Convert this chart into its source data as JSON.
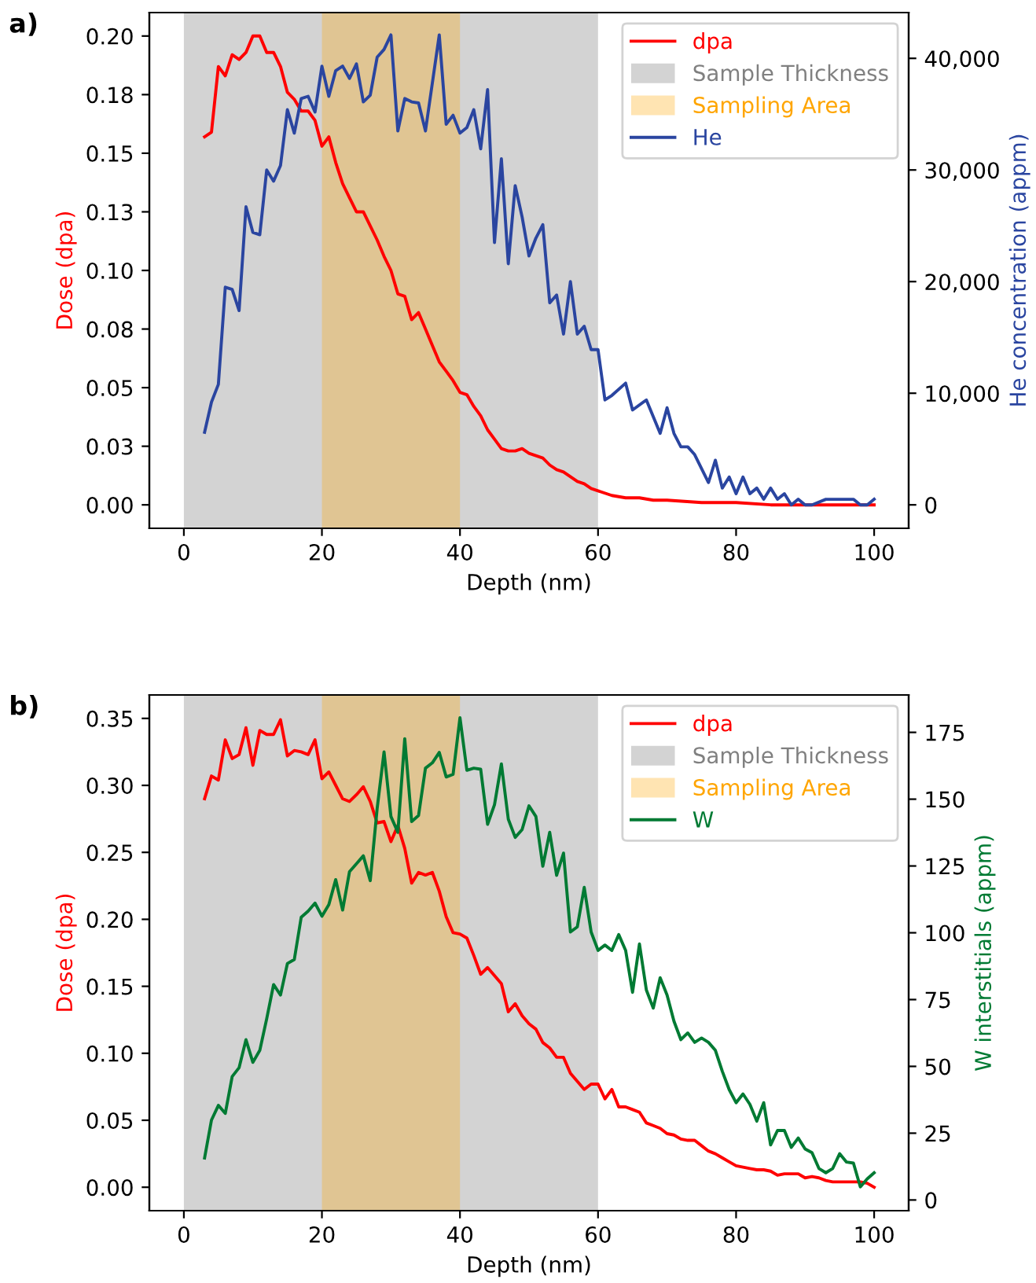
{
  "chart_data": [
    {
      "type": "line",
      "annotations": [
        "a)"
      ],
      "xlabel": "Depth (nm)",
      "ylabel": "Dose (dpa)",
      "y2label": "He concentration (appm)",
      "legend": "top right",
      "xlim": [
        -5,
        105
      ],
      "xticks": [
        0,
        20,
        40,
        60,
        80,
        100
      ],
      "ylim": [
        -0.01,
        0.21
      ],
      "yticks": [
        {
          "value": 0,
          "label": "0.00"
        },
        {
          "value": 0.025,
          "label": "0.03"
        },
        {
          "value": 0.05,
          "label": "0.05"
        },
        {
          "value": 0.075,
          "label": "0.08"
        },
        {
          "value": 0.1,
          "label": "0.10"
        },
        {
          "value": 0.125,
          "label": "0.13"
        },
        {
          "value": 0.15,
          "label": "0.15"
        },
        {
          "value": 0.175,
          "label": "0.18"
        },
        {
          "value": 0.2,
          "label": "0.20"
        }
      ],
      "y2lim": [
        -2100,
        44100
      ],
      "y2ticks": [
        0,
        {
          "value": 10000,
          "label": "10,000"
        },
        {
          "value": 20000,
          "label": "20,000"
        },
        {
          "value": 30000,
          "label": "30,000"
        },
        {
          "value": 40000,
          "label": "40,000"
        }
      ],
      "bands": [
        {
          "axis": "x",
          "from": 0,
          "to": 60,
          "label": "Sample Thickness",
          "color": "#808080"
        },
        {
          "axis": "x",
          "from": 20,
          "to": 40,
          "label": "Sampling Area",
          "color": "#ffa500"
        }
      ],
      "series": [
        {
          "name": "dpa",
          "color": "#ff0000",
          "x": [
            3,
            4,
            5,
            6,
            7,
            8,
            9,
            10,
            11,
            12,
            13,
            14,
            15,
            16,
            17,
            18,
            19,
            20,
            21,
            22,
            23,
            24,
            25,
            26,
            27,
            28,
            29,
            30,
            31,
            32,
            33,
            34,
            35,
            36,
            37,
            38,
            39,
            40,
            41,
            42,
            43,
            44,
            45,
            46,
            47,
            48,
            49,
            50,
            52,
            53,
            54,
            55,
            56,
            57,
            58,
            59,
            60,
            62,
            64,
            66,
            68,
            70,
            75,
            80,
            85,
            90,
            95,
            100
          ],
          "values": [
            0.157,
            0.159,
            0.187,
            0.183,
            0.192,
            0.19,
            0.193,
            0.2,
            0.2,
            0.193,
            0.193,
            0.187,
            0.176,
            0.173,
            0.168,
            0.168,
            0.164,
            0.153,
            0.157,
            0.146,
            0.137,
            0.131,
            0.125,
            0.125,
            0.119,
            0.113,
            0.106,
            0.1,
            0.09,
            0.089,
            0.079,
            0.082,
            0.075,
            0.068,
            0.061,
            0.057,
            0.053,
            0.048,
            0.047,
            0.042,
            0.038,
            0.032,
            0.028,
            0.024,
            0.023,
            0.023,
            0.024,
            0.022,
            0.02,
            0.017,
            0.015,
            0.014,
            0.012,
            0.01,
            0.009,
            0.007,
            0.006,
            0.004,
            0.003,
            0.003,
            0.002,
            0.002,
            0.001,
            0.001,
            0,
            0,
            0,
            0
          ]
        },
        {
          "name": "He",
          "color": "#2a45a0",
          "axis": "y2",
          "x": [
            3,
            4,
            5,
            6,
            7,
            8,
            9,
            10,
            11,
            12,
            13,
            14,
            15,
            16,
            17,
            18,
            19,
            20,
            21,
            22,
            23,
            24,
            25,
            26,
            27,
            28,
            29,
            30,
            31,
            32,
            33,
            34,
            35,
            36,
            37,
            38,
            39,
            40,
            41,
            42,
            43,
            44,
            45,
            46,
            47,
            48,
            49,
            50,
            51,
            52,
            53,
            54,
            55,
            56,
            57,
            58,
            59,
            60,
            61,
            62,
            64,
            65,
            67,
            69,
            70,
            71,
            72,
            73,
            74,
            76,
            77,
            78,
            79,
            80,
            81,
            82,
            83,
            84,
            85,
            86,
            87,
            88,
            89,
            90,
            91,
            93,
            95,
            97,
            98,
            99,
            100
          ],
          "values": [
            6500,
            9200,
            10800,
            19500,
            19300,
            17400,
            26700,
            24400,
            24200,
            30000,
            29000,
            30400,
            35400,
            33300,
            36400,
            36600,
            35200,
            39300,
            36600,
            38900,
            39300,
            38200,
            39500,
            36100,
            36700,
            40100,
            40800,
            42100,
            33500,
            36400,
            36100,
            36000,
            33500,
            37800,
            42100,
            34100,
            34900,
            33300,
            33800,
            35400,
            31900,
            37200,
            23500,
            31000,
            21600,
            28600,
            25800,
            22300,
            23900,
            25100,
            18100,
            18800,
            15300,
            20000,
            15300,
            16000,
            13900,
            13900,
            9400,
            9800,
            10900,
            8500,
            9400,
            6400,
            8700,
            6400,
            5200,
            5200,
            4500,
            2000,
            4000,
            1500,
            2500,
            1000,
            2500,
            1000,
            1500,
            500,
            1500,
            500,
            1000,
            0,
            500,
            0,
            0,
            500,
            500,
            500,
            0,
            0,
            500
          ]
        }
      ]
    },
    {
      "type": "line",
      "annotations": [
        "b)"
      ],
      "xlabel": "Depth (nm)",
      "ylabel": "Dose (dpa)",
      "y2label": "W interstitials (appm)",
      "legend": "top right",
      "xlim": [
        -5,
        105
      ],
      "xticks": [
        0,
        20,
        40,
        60,
        80,
        100
      ],
      "ylim": [
        -0.0175,
        0.3675
      ],
      "yticks": [
        {
          "value": 0,
          "label": "0.00"
        },
        {
          "value": 0.05,
          "label": "0.05"
        },
        {
          "value": 0.1,
          "label": "0.10"
        },
        {
          "value": 0.15,
          "label": "0.15"
        },
        {
          "value": 0.2,
          "label": "0.20"
        },
        {
          "value": 0.25,
          "label": "0.25"
        },
        {
          "value": 0.3,
          "label": "0.30"
        },
        {
          "value": 0.35,
          "label": "0.35"
        }
      ],
      "y2lim": [
        -4,
        189
      ],
      "y2ticks": [
        0,
        25,
        50,
        75,
        100,
        125,
        150,
        175
      ],
      "bands": [
        {
          "axis": "x",
          "from": 0,
          "to": 60,
          "label": "Sample Thickness",
          "color": "#808080"
        },
        {
          "axis": "x",
          "from": 20,
          "to": 40,
          "label": "Sampling Area",
          "color": "#ffa500"
        }
      ],
      "series": [
        {
          "name": "dpa",
          "color": "#ff0000",
          "x": [
            3,
            4,
            5,
            6,
            7,
            8,
            9,
            10,
            11,
            12,
            13,
            14,
            15,
            16,
            17,
            18,
            19,
            20,
            21,
            22,
            23,
            24,
            25,
            26,
            27,
            28,
            29,
            30,
            31,
            32,
            33,
            34,
            35,
            36,
            37,
            38,
            39,
            40,
            41,
            42,
            43,
            44,
            45,
            46,
            47,
            48,
            49,
            50,
            51,
            52,
            53,
            54,
            55,
            56,
            57,
            58,
            59,
            60,
            61,
            62,
            63,
            64,
            65,
            66,
            67,
            68,
            69,
            70,
            71,
            72,
            73,
            74,
            75,
            76,
            77,
            78,
            79,
            80,
            81,
            82,
            83,
            84,
            85,
            86,
            87,
            88,
            89,
            90,
            91,
            92,
            93,
            94,
            95,
            96,
            97,
            98,
            99,
            100
          ],
          "values": [
            0.29,
            0.307,
            0.304,
            0.334,
            0.32,
            0.323,
            0.343,
            0.315,
            0.341,
            0.338,
            0.338,
            0.349,
            0.322,
            0.326,
            0.325,
            0.323,
            0.334,
            0.305,
            0.31,
            0.3,
            0.29,
            0.288,
            0.293,
            0.299,
            0.288,
            0.272,
            0.273,
            0.258,
            0.27,
            0.253,
            0.227,
            0.235,
            0.233,
            0.235,
            0.221,
            0.202,
            0.19,
            0.189,
            0.186,
            0.173,
            0.159,
            0.164,
            0.158,
            0.152,
            0.131,
            0.137,
            0.128,
            0.122,
            0.118,
            0.108,
            0.104,
            0.097,
            0.097,
            0.085,
            0.079,
            0.073,
            0.077,
            0.077,
            0.066,
            0.073,
            0.06,
            0.06,
            0.058,
            0.056,
            0.048,
            0.046,
            0.044,
            0.04,
            0.039,
            0.036,
            0.035,
            0.035,
            0.031,
            0.027,
            0.025,
            0.022,
            0.019,
            0.016,
            0.015,
            0.014,
            0.013,
            0.013,
            0.012,
            0.009,
            0.01,
            0.01,
            0.01,
            0.007,
            0.008,
            0.007,
            0.005,
            0.004,
            0.004,
            0.004,
            0.004,
            0.004,
            0.003,
            0.0
          ]
        },
        {
          "name": "W",
          "color": "#007a33",
          "axis": "y2",
          "x": [
            3,
            4,
            5,
            6,
            7,
            8,
            9,
            10,
            11,
            12,
            13,
            14,
            15,
            16,
            17,
            18,
            19,
            20,
            21,
            22,
            23,
            24,
            25,
            26,
            27,
            28,
            29,
            30,
            31,
            32,
            33,
            34,
            35,
            36,
            37,
            38,
            39,
            40,
            41,
            42,
            43,
            44,
            45,
            46,
            47,
            48,
            49,
            50,
            51,
            52,
            53,
            54,
            55,
            56,
            57,
            58,
            59,
            60,
            61,
            62,
            63,
            64,
            65,
            66,
            67,
            68,
            69,
            70,
            71,
            72,
            73,
            74,
            75,
            76,
            77,
            78,
            79,
            80,
            81,
            82,
            83,
            84,
            85,
            86,
            87,
            88,
            89,
            90,
            91,
            92,
            93,
            94,
            95,
            96,
            97,
            98,
            99,
            100
          ],
          "values": [
            15.7,
            29.9,
            35.4,
            32.4,
            46.2,
            49.5,
            60.0,
            51.5,
            56.0,
            67.8,
            80.6,
            76.7,
            88.5,
            90.0,
            105.8,
            108.1,
            111.1,
            106.2,
            110.5,
            119.9,
            108.5,
            122.9,
            125.8,
            128.8,
            119.5,
            146.5,
            167.7,
            143.5,
            137.6,
            172.6,
            141.6,
            143.9,
            161.6,
            163.6,
            167.5,
            158.3,
            159.3,
            180.5,
            160.8,
            161.6,
            161.2,
            140.6,
            147.9,
            163.2,
            142.5,
            135.7,
            138.6,
            147.5,
            143.5,
            124.9,
            137.6,
            121.5,
            129.8,
            100.3,
            102.2,
            117.0,
            100.3,
            93.4,
            95.4,
            93.4,
            99.3,
            93.4,
            77.7,
            95.8,
            78.6,
            71.8,
            83.2,
            76.7,
            66.9,
            60.0,
            62.5,
            59.0,
            60.6,
            59.0,
            56.0,
            48.2,
            41.3,
            36.4,
            39.7,
            35.8,
            29.5,
            36.4,
            20.6,
            26.0,
            26.0,
            19.7,
            23.2,
            19.1,
            17.7,
            11.8,
            10.2,
            11.8,
            17.3,
            14.2,
            13.8,
            4.9,
            7.9,
            10.2
          ]
        }
      ]
    }
  ]
}
